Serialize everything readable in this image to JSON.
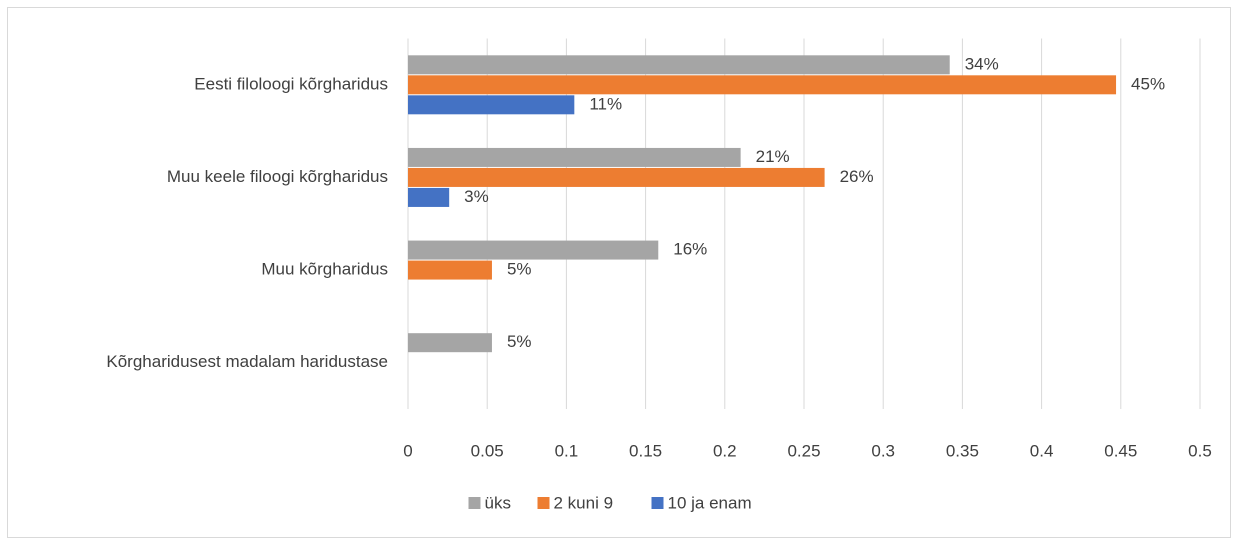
{
  "chart_data": {
    "type": "bar",
    "orientation": "horizontal",
    "categories": [
      "Eesti filoloogi kõrgharidus",
      "Muu keele filoogi kõrgharidus",
      "Muu kõrgharidus",
      "Kõrgharidusest madalam haridustase"
    ],
    "series": [
      {
        "name": "üks",
        "color": "#a5a5a5",
        "values": [
          0.342,
          0.21,
          0.158,
          0.053
        ],
        "value_labels": [
          "34%",
          "21%",
          "16%",
          "5%"
        ]
      },
      {
        "name": "2 kuni 9",
        "color": "#ed7d31",
        "values": [
          0.447,
          0.263,
          0.053,
          null
        ],
        "value_labels": [
          "45%",
          "26%",
          "5%",
          null
        ]
      },
      {
        "name": "10 ja enam",
        "color": "#4472c4",
        "values": [
          0.105,
          0.026,
          null,
          null
        ],
        "value_labels": [
          "11%",
          "3%",
          null,
          null
        ]
      }
    ],
    "xlim": [
      0,
      0.5
    ],
    "xticks": [
      0,
      0.05,
      0.1,
      0.15,
      0.2,
      0.25,
      0.3,
      0.35,
      0.4,
      0.45,
      0.5
    ],
    "grid": true,
    "legend": "bottom"
  }
}
